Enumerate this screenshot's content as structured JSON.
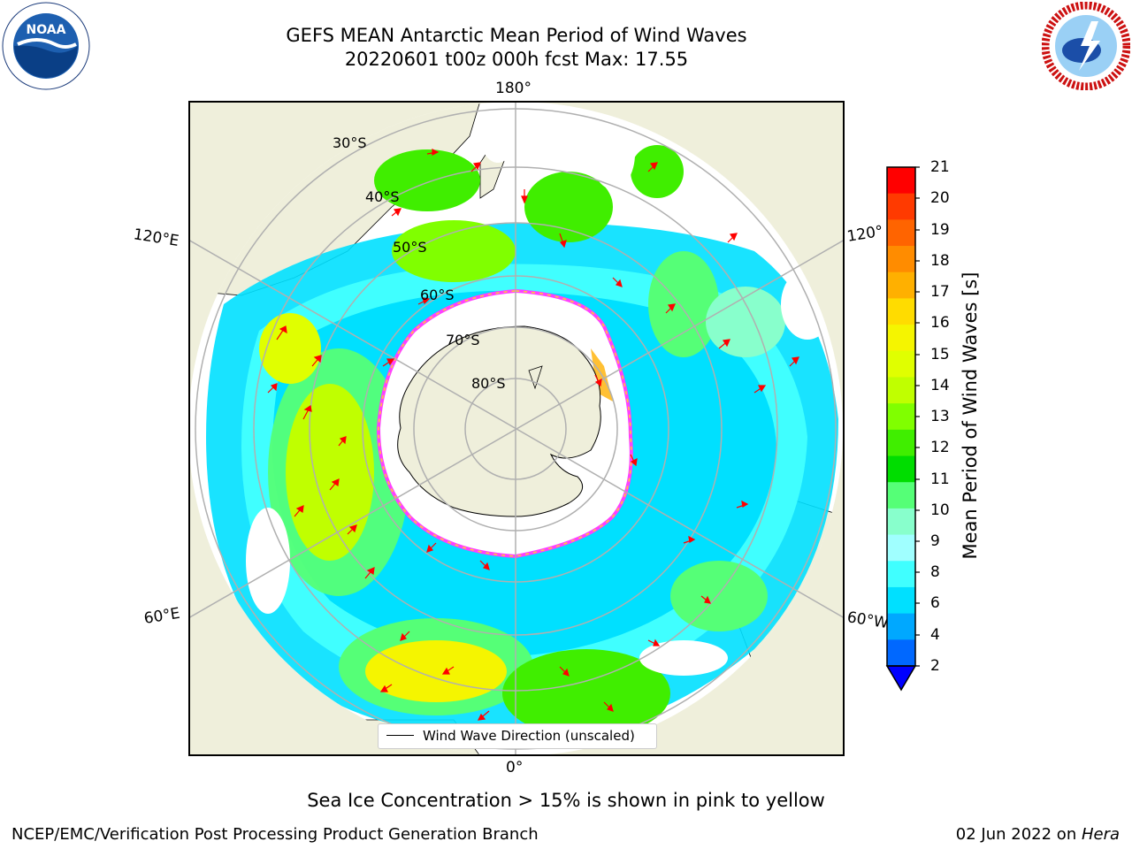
{
  "title": {
    "line1": "GEFS MEAN Antarctic Mean Period of Wind Waves",
    "line2": "20220601 t00z 000h fcst   Max: 17.55"
  },
  "map": {
    "projection": "south-polar-stereographic",
    "lon_labels": {
      "top": "180°",
      "bottom": "0°",
      "left_top": "120°E",
      "left_bottom": "60°E",
      "right_top": "120°",
      "right_bottom": "60°W"
    },
    "lat_labels": [
      "30°S",
      "40°S",
      "50°S",
      "60°S",
      "70°S",
      "80°S"
    ],
    "legend": "Wind Wave Direction (unscaled)",
    "colors": {
      "land": "#EFEFDB",
      "ice_edge_pink": "#FF40FF",
      "ice_edge_yellow": "#FFD030",
      "arrow": "#FF0000",
      "grid": "#b0b0b0"
    }
  },
  "colorbar": {
    "label": "Mean Period of Wind Waves [s]",
    "ticks": [
      "21",
      "20",
      "19",
      "18",
      "17",
      "16",
      "15",
      "14",
      "13",
      "12",
      "11",
      "10",
      "9",
      "8",
      "6",
      "4",
      "2"
    ],
    "colors_top_to_bottom": [
      "#FF0000",
      "#FF3A00",
      "#FF6400",
      "#FF8C00",
      "#FFB000",
      "#FFDC00",
      "#F5F500",
      "#E0FF00",
      "#C0FF00",
      "#80FF00",
      "#40EE00",
      "#00DD00",
      "#55FF77",
      "#88FFCC",
      "#A0FFFF",
      "#40FFFF",
      "#00E0FF",
      "#00A8FF",
      "#0068FF"
    ],
    "extend_color": "#0000FF"
  },
  "footer": {
    "note": "Sea Ice Concentration > 15% is shown in pink to yellow",
    "credit": "NCEP/EMC/Verification Post Processing Product Generation Branch",
    "date": "02 Jun 2022 on ",
    "machine": "Hera"
  },
  "logos": {
    "left": "NOAA",
    "right": "NATIONAL WEATHER SERVICE"
  }
}
